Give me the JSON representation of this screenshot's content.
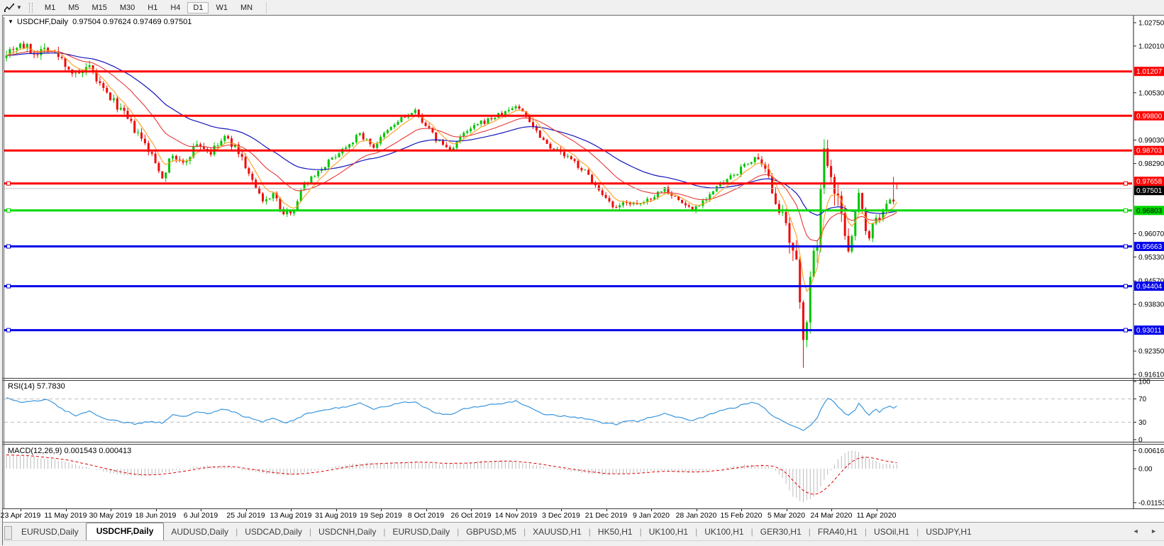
{
  "toolbar": {
    "timeframes": [
      "M1",
      "M5",
      "M15",
      "M30",
      "H1",
      "H4",
      "D1",
      "W1",
      "MN"
    ],
    "active_timeframe": "D1"
  },
  "chart": {
    "title": "USDCHF,Daily",
    "menu_caret": "▼",
    "ohlc_text": "0.97504 0.97624 0.97469 0.97501",
    "open": "0.97504",
    "high": "0.97624",
    "low": "0.97469",
    "close": "0.97501"
  },
  "chart_data": {
    "type": "candlestick",
    "symbol": "USDCHF",
    "period": "Daily",
    "seed": 7,
    "colors": {
      "bull": "#00c400",
      "bear": "#ee0a0a",
      "ma_fast": "#ff9d1e",
      "ma_mid": "#e43737",
      "ma_slow": "#1515bb",
      "rsi": "#3a96dd",
      "hist": "#bbbbbb",
      "signal": "#e00000"
    },
    "price_axis": {
      "max": 1.0275,
      "min": 0.9161,
      "ticks": [
        "1.02750",
        "1.02010",
        "1.00530",
        "0.99030",
        "0.98290",
        "0.96070",
        "0.95330",
        "0.94570",
        "0.93830",
        "0.92350",
        "0.91610"
      ]
    },
    "level_lines": [
      {
        "price": 1.01207,
        "label": "1.01207",
        "color": "#fe0000",
        "text": "#ffffff",
        "markers": false,
        "label_dy": 0
      },
      {
        "price": 0.998,
        "label": "0.99800",
        "color": "#fe0000",
        "text": "#ffffff",
        "markers": false,
        "label_dy": 0
      },
      {
        "price": 0.98703,
        "label": "0.98703",
        "color": "#fe0000",
        "text": "#ffffff",
        "markers": false,
        "label_dy": 0
      },
      {
        "price": 0.97658,
        "label": "0.97658",
        "color": "#fe0000",
        "text": "#ffffff",
        "markers": true,
        "label_dy": -3
      },
      {
        "price": 0.96803,
        "label": "0.96803",
        "color": "#00d800",
        "text": "#000000",
        "markers": true,
        "label_dy": 0
      },
      {
        "price": 0.95663,
        "label": "0.95663",
        "color": "#0000ea",
        "text": "#ffffff",
        "markers": true,
        "label_dy": 0
      },
      {
        "price": 0.94404,
        "label": "0.94404",
        "color": "#0000ea",
        "text": "#ffffff",
        "markers": true,
        "label_dy": 0
      },
      {
        "price": 0.93011,
        "label": "0.93011",
        "color": "#0000ea",
        "text": "#ffffff",
        "markers": true,
        "label_dy": 0
      }
    ],
    "current_price": {
      "value": 0.97501,
      "label": "0.97501",
      "line_color": "#c6c6c6",
      "label_bg": "#000000",
      "text": "#ffffff",
      "label_dy": 3
    },
    "candles": {
      "count": 258,
      "close_anchors": [
        [
          0,
          1.0185
        ],
        [
          4,
          1.0208
        ],
        [
          8,
          1.018
        ],
        [
          12,
          1.0196
        ],
        [
          16,
          1.0158
        ],
        [
          20,
          1.0105
        ],
        [
          24,
          1.0128
        ],
        [
          28,
          1.006
        ],
        [
          33,
          1.0
        ],
        [
          37,
          0.9935
        ],
        [
          41,
          0.9872
        ],
        [
          45,
          0.979
        ],
        [
          48,
          0.9855
        ],
        [
          51,
          0.9825
        ],
        [
          55,
          0.9893
        ],
        [
          59,
          0.9862
        ],
        [
          63,
          0.9912
        ],
        [
          67,
          0.9868
        ],
        [
          71,
          0.9772
        ],
        [
          74,
          0.9705
        ],
        [
          77,
          0.9735
        ],
        [
          80,
          0.9665
        ],
        [
          83,
          0.9688
        ],
        [
          86,
          0.9765
        ],
        [
          90,
          0.9805
        ],
        [
          94,
          0.9845
        ],
        [
          98,
          0.9885
        ],
        [
          102,
          0.9922
        ],
        [
          106,
          0.9882
        ],
        [
          110,
          0.9932
        ],
        [
          114,
          0.9972
        ],
        [
          118,
          0.9992
        ],
        [
          121,
          0.9952
        ],
        [
          124,
          0.9905
        ],
        [
          128,
          0.9872
        ],
        [
          132,
          0.9922
        ],
        [
          136,
          0.9952
        ],
        [
          140,
          0.9972
        ],
        [
          144,
          0.9992
        ],
        [
          147,
          1.0012
        ],
        [
          150,
          0.9982
        ],
        [
          153,
          0.9932
        ],
        [
          156,
          0.9892
        ],
        [
          160,
          0.9862
        ],
        [
          164,
          0.9832
        ],
        [
          168,
          0.9792
        ],
        [
          172,
          0.9722
        ],
        [
          176,
          0.9682
        ],
        [
          179,
          0.9712
        ],
        [
          182,
          0.9692
        ],
        [
          186,
          0.9722
        ],
        [
          190,
          0.9752
        ],
        [
          194,
          0.9712
        ],
        [
          198,
          0.9682
        ],
        [
          202,
          0.9722
        ],
        [
          206,
          0.9762
        ],
        [
          210,
          0.9792
        ],
        [
          213,
          0.9822
        ],
        [
          216,
          0.9848
        ],
        [
          219,
          0.9802
        ],
        [
          222,
          0.9722
        ],
        [
          224,
          0.9652
        ],
        [
          226,
          0.9572
        ],
        [
          228,
          0.9492
        ],
        [
          229,
          0.9392
        ],
        [
          230,
          0.9302
        ],
        [
          231,
          0.9352
        ],
        [
          232,
          0.9442
        ],
        [
          233,
          0.9522
        ],
        [
          234,
          0.9602
        ],
        [
          235,
          0.9722
        ],
        [
          236,
          0.9862
        ],
        [
          237,
          0.9852
        ],
        [
          238,
          0.9812
        ],
        [
          240,
          0.9722
        ],
        [
          242,
          0.9602
        ],
        [
          243,
          0.9572
        ],
        [
          245,
          0.9662
        ],
        [
          246,
          0.9742
        ],
        [
          247,
          0.97
        ],
        [
          248,
          0.9622
        ],
        [
          249,
          0.959
        ],
        [
          250,
          0.9642
        ],
        [
          251,
          0.9662
        ],
        [
          252,
          0.9648
        ],
        [
          253,
          0.9682
        ],
        [
          254,
          0.9698
        ],
        [
          255,
          0.9712
        ],
        [
          256,
          0.9702
        ],
        [
          257,
          0.97501
        ]
      ],
      "vol_anchors": [
        [
          0,
          0.0018
        ],
        [
          30,
          0.0016
        ],
        [
          60,
          0.0014
        ],
        [
          90,
          0.001
        ],
        [
          150,
          0.001
        ],
        [
          180,
          0.0011
        ],
        [
          210,
          0.001
        ],
        [
          218,
          0.0014
        ],
        [
          222,
          0.0028
        ],
        [
          228,
          0.0045
        ],
        [
          238,
          0.0045
        ],
        [
          244,
          0.003
        ],
        [
          250,
          0.0015
        ],
        [
          257,
          0.0012
        ]
      ],
      "overrides": {
        "230": {
          "low": 0.9182
        },
        "236": {
          "high": 0.9906
        },
        "256": {
          "high": 0.9787
        },
        "257": {
          "open": 0.97504,
          "high": 0.97624,
          "low": 0.97469,
          "close": 0.97501
        }
      }
    },
    "rsi": {
      "label": "RSI(14) 57.7830",
      "period": 14,
      "value": 57.783,
      "levels": [
        70,
        30
      ],
      "axis": [
        100,
        70,
        30,
        0
      ],
      "anchors": [
        [
          0,
          73
        ],
        [
          4,
          63
        ],
        [
          8,
          67
        ],
        [
          12,
          69
        ],
        [
          16,
          53
        ],
        [
          20,
          41
        ],
        [
          24,
          49
        ],
        [
          28,
          37
        ],
        [
          33,
          31
        ],
        [
          37,
          27
        ],
        [
          41,
          31
        ],
        [
          45,
          28
        ],
        [
          48,
          43
        ],
        [
          51,
          39
        ],
        [
          55,
          49
        ],
        [
          59,
          45
        ],
        [
          63,
          53
        ],
        [
          67,
          44
        ],
        [
          71,
          35
        ],
        [
          74,
          30
        ],
        [
          77,
          37
        ],
        [
          80,
          29
        ],
        [
          83,
          32
        ],
        [
          86,
          43
        ],
        [
          90,
          49
        ],
        [
          94,
          53
        ],
        [
          98,
          57
        ],
        [
          102,
          62
        ],
        [
          106,
          52
        ],
        [
          110,
          58
        ],
        [
          114,
          63
        ],
        [
          118,
          65
        ],
        [
          121,
          55
        ],
        [
          124,
          46
        ],
        [
          128,
          43
        ],
        [
          132,
          53
        ],
        [
          136,
          57
        ],
        [
          140,
          60
        ],
        [
          144,
          63
        ],
        [
          147,
          66
        ],
        [
          150,
          58
        ],
        [
          153,
          48
        ],
        [
          156,
          43
        ],
        [
          160,
          41
        ],
        [
          164,
          39
        ],
        [
          168,
          35
        ],
        [
          172,
          29
        ],
        [
          176,
          26
        ],
        [
          179,
          33
        ],
        [
          182,
          31
        ],
        [
          186,
          39
        ],
        [
          190,
          45
        ],
        [
          194,
          38
        ],
        [
          198,
          33
        ],
        [
          202,
          41
        ],
        [
          206,
          49
        ],
        [
          210,
          55
        ],
        [
          213,
          61
        ],
        [
          216,
          64
        ],
        [
          219,
          52
        ],
        [
          222,
          38
        ],
        [
          224,
          32
        ],
        [
          226,
          26
        ],
        [
          228,
          21
        ],
        [
          230,
          15
        ],
        [
          232,
          24
        ],
        [
          234,
          38
        ],
        [
          236,
          62
        ],
        [
          237,
          72
        ],
        [
          238,
          68
        ],
        [
          240,
          57
        ],
        [
          242,
          46
        ],
        [
          243,
          42
        ],
        [
          245,
          52
        ],
        [
          246,
          62
        ],
        [
          247,
          56
        ],
        [
          248,
          46
        ],
        [
          249,
          42
        ],
        [
          250,
          48
        ],
        [
          251,
          51
        ],
        [
          252,
          48
        ],
        [
          253,
          53
        ],
        [
          254,
          56
        ],
        [
          255,
          59
        ],
        [
          256,
          53
        ],
        [
          257,
          57.78
        ]
      ]
    },
    "macd": {
      "label": "MACD(12,26,9) 0.001543 0.000413",
      "value": 0.001543,
      "signal": 0.000413,
      "axis": [
        "0.006167",
        "0.00",
        "-0.011531"
      ],
      "anchors": [
        [
          0,
          0.0046
        ],
        [
          6,
          0.0043
        ],
        [
          12,
          0.0034
        ],
        [
          18,
          0.002
        ],
        [
          24,
          0.0004
        ],
        [
          29,
          -0.0012
        ],
        [
          34,
          -0.0023
        ],
        [
          40,
          -0.0024
        ],
        [
          46,
          -0.0013
        ],
        [
          52,
          0.0001
        ],
        [
          58,
          0.0011
        ],
        [
          64,
          0.0007
        ],
        [
          70,
          -0.0009
        ],
        [
          76,
          -0.0019
        ],
        [
          82,
          -0.0021
        ],
        [
          88,
          -0.0009
        ],
        [
          94,
          0.0007
        ],
        [
          100,
          0.0017
        ],
        [
          106,
          0.0021
        ],
        [
          112,
          0.0019
        ],
        [
          118,
          0.0025
        ],
        [
          124,
          0.0017
        ],
        [
          130,
          0.0019
        ],
        [
          136,
          0.0025
        ],
        [
          142,
          0.0029
        ],
        [
          148,
          0.0021
        ],
        [
          154,
          0.0009
        ],
        [
          160,
          -0.0003
        ],
        [
          166,
          -0.0013
        ],
        [
          172,
          -0.0021
        ],
        [
          178,
          -0.0017
        ],
        [
          184,
          -0.0009
        ],
        [
          190,
          -0.0007
        ],
        [
          196,
          -0.0013
        ],
        [
          202,
          -0.0007
        ],
        [
          208,
          0.0005
        ],
        [
          214,
          0.0015
        ],
        [
          218,
          0.0013
        ],
        [
          221,
          0.0002
        ],
        [
          224,
          -0.003
        ],
        [
          227,
          -0.0095
        ],
        [
          230,
          -0.0115
        ],
        [
          233,
          -0.0095
        ],
        [
          236,
          -0.004
        ],
        [
          238,
          -0.0005
        ],
        [
          240,
          0.003
        ],
        [
          242,
          0.0055
        ],
        [
          244,
          0.0062
        ],
        [
          246,
          0.0055
        ],
        [
          248,
          0.004
        ],
        [
          250,
          0.0028
        ],
        [
          252,
          0.002
        ],
        [
          254,
          0.0016
        ],
        [
          256,
          0.0014
        ],
        [
          257,
          0.001543
        ]
      ]
    },
    "date_labels": [
      "23 Apr 2019",
      "11 May 2019",
      "30 May 2019",
      "18 Jun 2019",
      "6 Jul 2019",
      "25 Jul 2019",
      "13 Aug 2019",
      "31 Aug 2019",
      "19 Sep 2019",
      "8 Oct 2019",
      "26 Oct 2019",
      "14 Nov 2019",
      "3 Dec 2019",
      "21 Dec 2019",
      "9 Jan 2020",
      "28 Jan 2020",
      "15 Feb 2020",
      "5 Mar 2020",
      "24 Mar 2020",
      "11 Apr 2020"
    ]
  },
  "tabs": {
    "items": [
      "EURUSD,Daily",
      "USDCHF,Daily",
      "AUDUSD,Daily",
      "USDCAD,Daily",
      "USDCNH,Daily",
      "EURUSD,Daily",
      "GBPUSD,M5",
      "XAUUSD,H1",
      "HK50,H1",
      "UK100,H1",
      "UK100,H1",
      "GER30,H1",
      "FRA40,H1",
      "USOil,H1",
      "USDJPY,H1"
    ],
    "active_index": 1,
    "scroll_left_icon": "◄",
    "scroll_right_icon": "►"
  }
}
